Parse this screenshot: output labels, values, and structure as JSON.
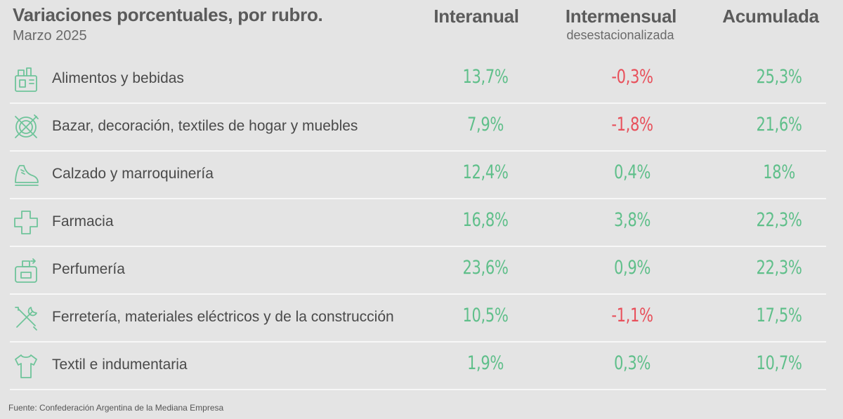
{
  "header": {
    "title": "Variaciones porcentuales, por rubro.",
    "subtitle": "Marzo 2025",
    "columns": [
      {
        "label": "Interanual",
        "sublabel": ""
      },
      {
        "label": "Intermensual",
        "sublabel": "desestacionalizada"
      },
      {
        "label": "Acumulada",
        "sublabel": ""
      }
    ]
  },
  "colors": {
    "positive": "#5fbf8a",
    "negative": "#e8505b",
    "icon": "#6fc49a"
  },
  "chart_data": {
    "type": "table",
    "title": "Variaciones porcentuales, por rubro.",
    "subtitle": "Marzo 2025",
    "columns": [
      "Interanual",
      "Intermensual desestacionalizada",
      "Acumulada"
    ],
    "rows": [
      {
        "icon": "grocery-icon",
        "label": "Alimentos y bebidas",
        "values": [
          "13,7%",
          "-0,3%",
          "25,3%"
        ],
        "numeric": [
          13.7,
          -0.3,
          25.3
        ]
      },
      {
        "icon": "plate-cutlery-icon",
        "label": "Bazar, decoración, textiles de hogar y muebles",
        "values": [
          "7,9%",
          "-1,8%",
          "21,6%"
        ],
        "numeric": [
          7.9,
          -1.8,
          21.6
        ]
      },
      {
        "icon": "shoe-icon",
        "label": "Calzado y marroquinería",
        "values": [
          "12,4%",
          "0,4%",
          "18%"
        ],
        "numeric": [
          12.4,
          0.4,
          18
        ]
      },
      {
        "icon": "medical-cross-icon",
        "label": "Farmacia",
        "values": [
          "16,8%",
          "3,8%",
          "22,3%"
        ],
        "numeric": [
          16.8,
          3.8,
          22.3
        ]
      },
      {
        "icon": "perfume-icon",
        "label": "Perfumería",
        "values": [
          "23,6%",
          "0,9%",
          "22,3%"
        ],
        "numeric": [
          23.6,
          0.9,
          22.3
        ]
      },
      {
        "icon": "tools-icon",
        "label": "Ferretería, materiales eléctricos y de la construcción",
        "values": [
          "10,5%",
          "-1,1%",
          "17,5%"
        ],
        "numeric": [
          10.5,
          -1.1,
          17.5
        ]
      },
      {
        "icon": "shirt-icon",
        "label": "Textil e indumentaria",
        "values": [
          "1,9%",
          "0,3%",
          "10,7%"
        ],
        "numeric": [
          1.9,
          0.3,
          10.7
        ]
      }
    ]
  },
  "footer": {
    "source": "Fuente: Confederación Argentina de la Mediana Empresa"
  }
}
